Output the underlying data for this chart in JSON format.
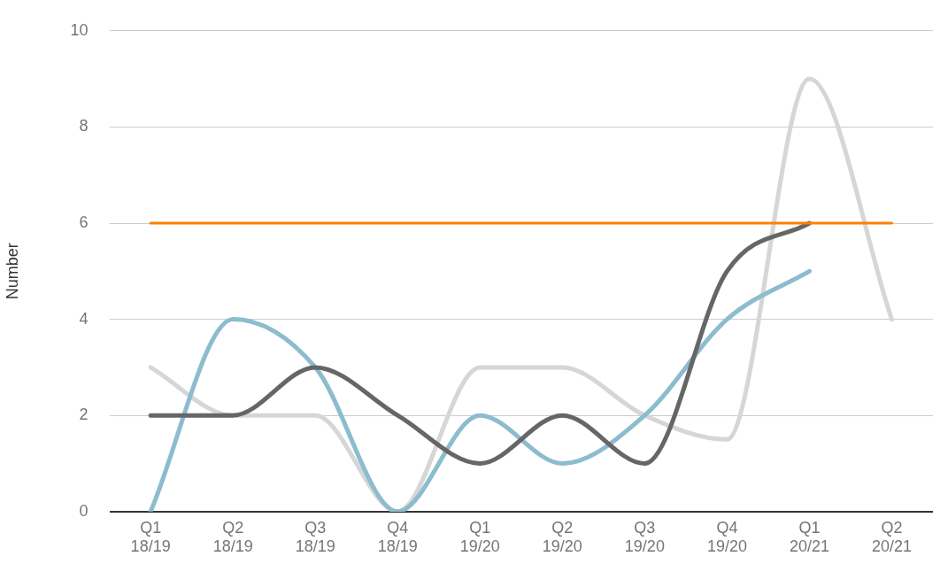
{
  "chart_data": {
    "type": "line",
    "ylabel": "Number",
    "categories": [
      "Q1\n18/19",
      "Q2\n18/19",
      "Q3\n18/19",
      "Q4\n18/19",
      "Q1\n19/20",
      "Q2\n19/20",
      "Q3\n19/20",
      "Q4\n19/20",
      "Q1\n20/21",
      "Q2\n20/21"
    ],
    "series": [
      {
        "color": "#ff7f00",
        "values": [
          6,
          6,
          6,
          6,
          6,
          6,
          6,
          6,
          6,
          6
        ]
      },
      {
        "color": "#666666",
        "values": [
          2,
          2,
          3,
          2,
          1,
          2,
          1,
          5,
          6,
          null
        ]
      },
      {
        "color": "#8cbcce",
        "values": [
          0,
          4,
          3,
          0,
          2,
          1,
          2,
          4,
          5,
          null
        ]
      },
      {
        "color": "#d6d6d6",
        "values": [
          3,
          2,
          2,
          0,
          3,
          3,
          2,
          1.5,
          9,
          4
        ]
      }
    ],
    "ylim": [
      0,
      10
    ],
    "yticks": [
      0,
      2,
      4,
      6,
      8,
      10
    ],
    "grid": "y",
    "legend": false,
    "marker": "none",
    "line_style": "solid"
  }
}
